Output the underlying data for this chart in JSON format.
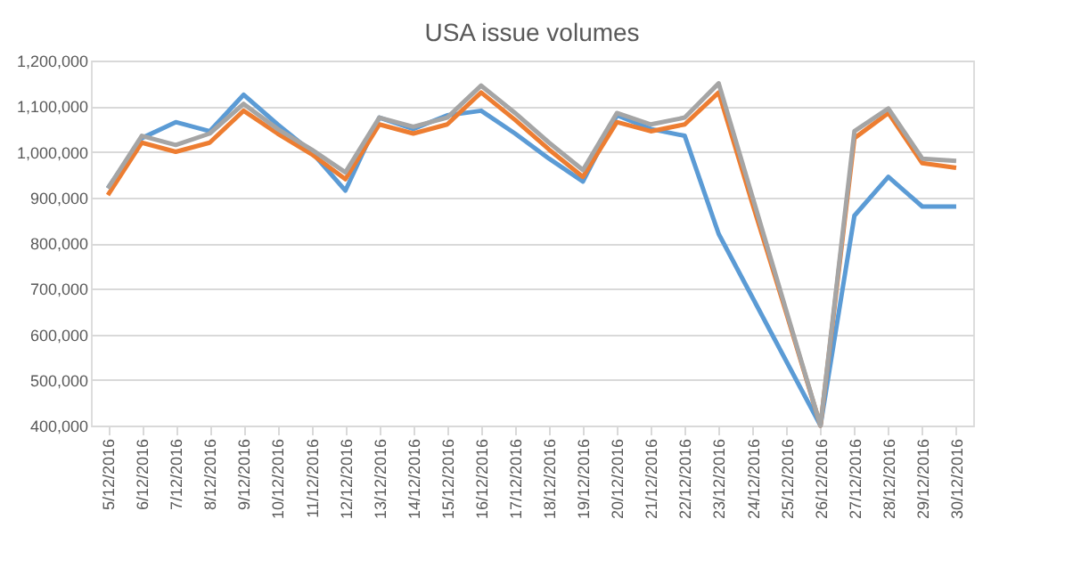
{
  "chart_data": {
    "type": "line",
    "title": "USA issue volumes",
    "categories": [
      "5/12/2016",
      "6/12/2016",
      "7/12/2016",
      "8/12/2016",
      "9/12/2016",
      "10/12/2016",
      "11/12/2016",
      "12/12/2016",
      "13/12/2016",
      "14/12/2016",
      "15/12/2016",
      "16/12/2016",
      "17/12/2016",
      "18/12/2016",
      "19/12/2016",
      "20/12/2016",
      "21/12/2016",
      "22/12/2016",
      "23/12/2016",
      "24/12/2016",
      "25/12/2016",
      "26/12/2016",
      "27/12/2016",
      "28/12/2016",
      "29/12/2016",
      "30/12/2016"
    ],
    "series": [
      {
        "color": "#5b9bd5",
        "values": [
          920000,
          1030000,
          1065000,
          1045000,
          1125000,
          1060000,
          1000000,
          915000,
          1075000,
          1050000,
          1080000,
          1090000,
          1040000,
          985000,
          935000,
          1080000,
          1050000,
          1035000,
          820000,
          680000,
          540000,
          400000,
          860000,
          945000,
          880000,
          880000
        ]
      },
      {
        "color": "#ed7d31",
        "values": [
          905000,
          1020000,
          1000000,
          1020000,
          1090000,
          1040000,
          995000,
          940000,
          1060000,
          1040000,
          1060000,
          1130000,
          1070000,
          1005000,
          945000,
          1065000,
          1045000,
          1060000,
          1130000,
          885000,
          645000,
          400000,
          1030000,
          1085000,
          975000,
          965000
        ]
      },
      {
        "color": "#a5a5a5",
        "values": [
          920000,
          1035000,
          1015000,
          1040000,
          1105000,
          1050000,
          1005000,
          955000,
          1075000,
          1055000,
          1075000,
          1145000,
          1085000,
          1020000,
          960000,
          1085000,
          1060000,
          1075000,
          1150000,
          900000,
          650000,
          400000,
          1045000,
          1095000,
          985000,
          980000
        ]
      }
    ],
    "ylim": [
      400000,
      1200000
    ],
    "yticks": [
      {
        "value": 400000,
        "label": "400,000"
      },
      {
        "value": 500000,
        "label": "500,000"
      },
      {
        "value": 600000,
        "label": "600,000"
      },
      {
        "value": 700000,
        "label": "700,000"
      },
      {
        "value": 800000,
        "label": "800,000"
      },
      {
        "value": 900000,
        "label": "900,000"
      },
      {
        "value": 1000000,
        "label": "1,000,000"
      },
      {
        "value": 1100000,
        "label": "1,100,000"
      },
      {
        "value": 1200000,
        "label": "1,200,000"
      }
    ],
    "grid": "y",
    "legend": false,
    "marker": "none",
    "line_style": "solid"
  }
}
